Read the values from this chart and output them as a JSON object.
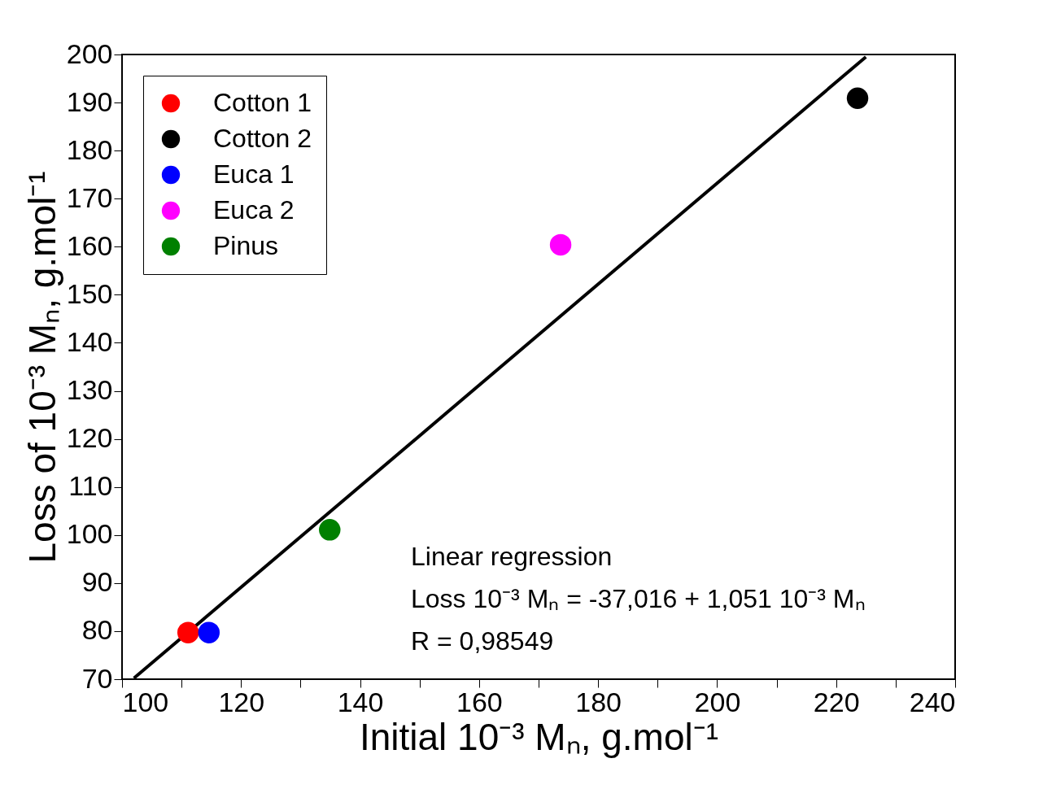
{
  "chart_data": {
    "type": "scatter",
    "xlabel": "Initial 10⁻³ Mₙ, g.mol⁻¹",
    "ylabel": "Loss of 10⁻³ Mₙ, g.mol⁻¹",
    "xlim": [
      100,
      240
    ],
    "ylim": [
      70,
      200
    ],
    "xticks": [
      100,
      {
        "value": 110,
        "label": null
      },
      120,
      {
        "value": 130,
        "label": null
      },
      140,
      {
        "value": 150,
        "label": null
      },
      160,
      {
        "value": 170,
        "label": null
      },
      180,
      {
        "value": 190,
        "label": null
      },
      200,
      {
        "value": 210,
        "label": null
      },
      220,
      {
        "value": 230,
        "label": null
      },
      240
    ],
    "yticks": [
      70,
      80,
      90,
      100,
      110,
      120,
      130,
      140,
      150,
      160,
      170,
      180,
      190,
      200
    ],
    "grid": false,
    "legend": "top left",
    "marker": "circle",
    "series": [
      {
        "name": "Cotton 1",
        "color": "#ff0000",
        "x": [
          111.1
        ],
        "values": [
          79.7
        ]
      },
      {
        "name": "Cotton 2",
        "color": "#000000",
        "x": [
          223.6
        ],
        "values": [
          190.9
        ]
      },
      {
        "name": "Euca 1",
        "color": "#0000ff",
        "x": [
          114.6
        ],
        "values": [
          79.7
        ]
      },
      {
        "name": "Euca 2",
        "color": "#ff00ff",
        "x": [
          173.7
        ],
        "values": [
          160.4
        ]
      },
      {
        "name": "Pinus",
        "color": "#008000",
        "x": [
          134.9
        ],
        "values": [
          101.1
        ]
      },
      {
        "type": "line",
        "color": "#000000",
        "x": [
          102,
          225
        ],
        "values": [
          70.2,
          199.5
        ],
        "line_style": "solid",
        "marker": "none"
      }
    ],
    "annotations": [
      "Linear regression",
      "Loss 10⁻³ Mₙ = -37,016 + 1,051 10⁻³ Mₙ",
      "R = 0,98549"
    ]
  }
}
